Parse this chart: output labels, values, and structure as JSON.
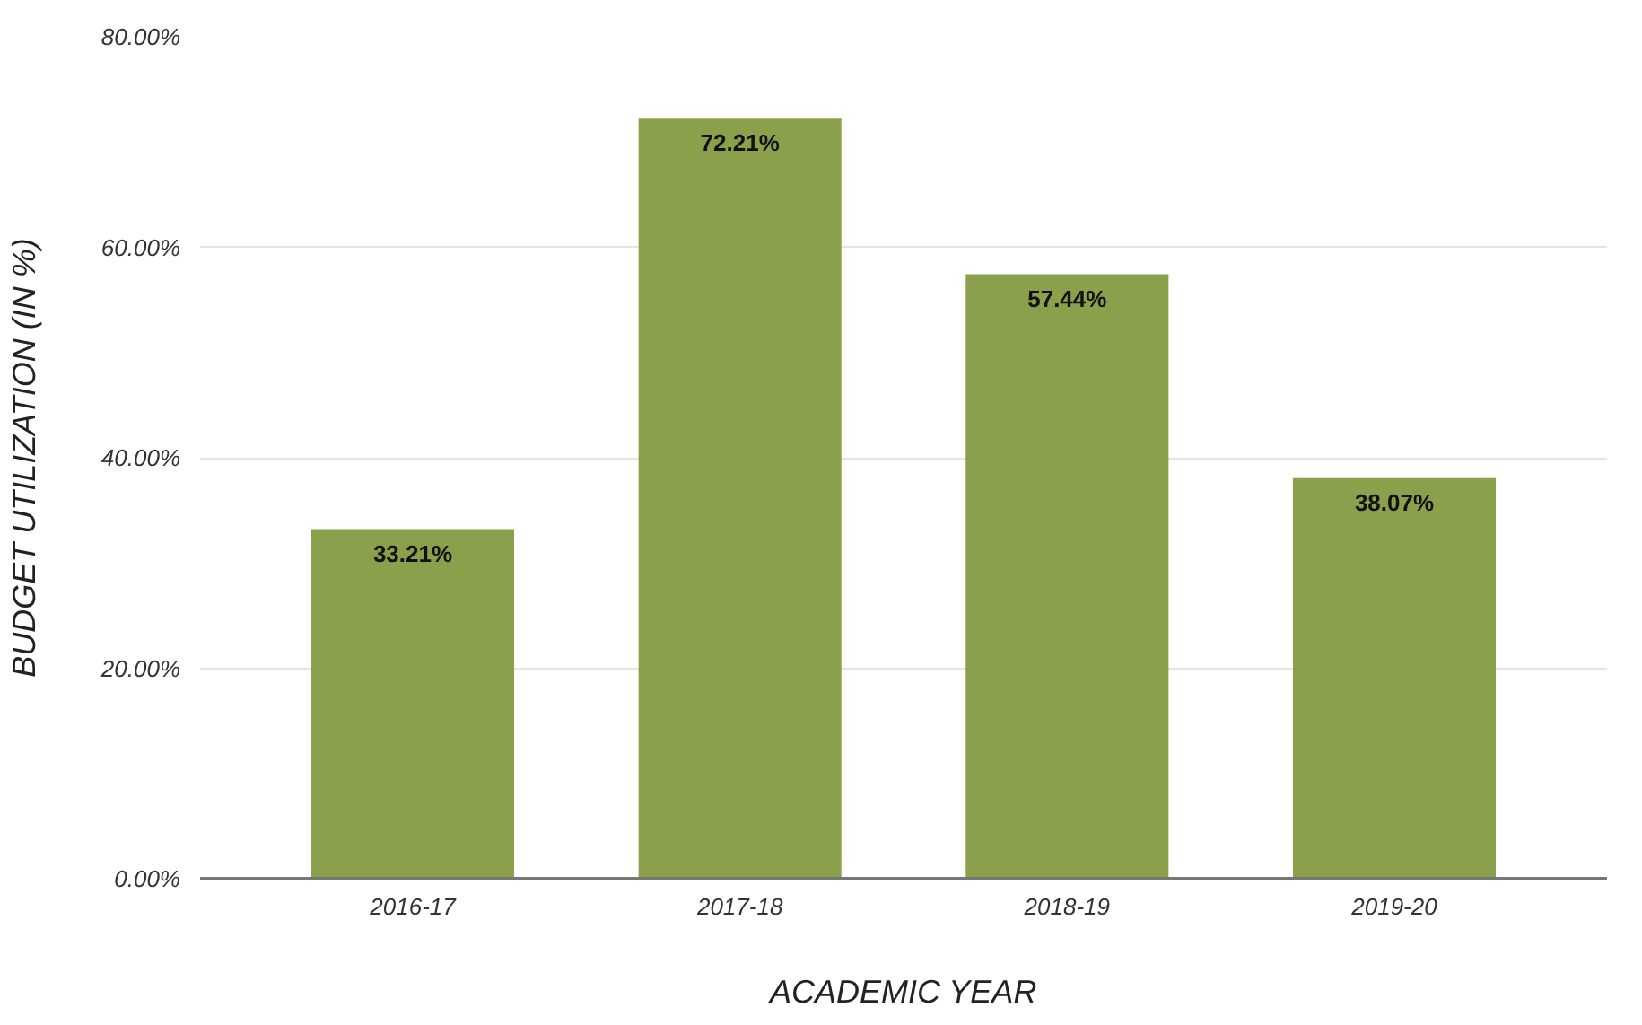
{
  "chart_data": {
    "type": "bar",
    "xlabel": "ACADEMIC YEAR",
    "ylabel": "BUDGET UTILIZATION (IN %)",
    "categories": [
      "2016-17",
      "2017-18",
      "2018-19",
      "2019-20"
    ],
    "values": [
      33.21,
      72.21,
      57.44,
      38.07
    ],
    "value_labels": [
      "33.21%",
      "72.21%",
      "57.44%",
      "38.07%"
    ],
    "color": "#8aa04a",
    "ylim": [
      0,
      80
    ],
    "yticks": [
      {
        "value": 0,
        "label": "0.00%"
      },
      {
        "value": 20,
        "label": "20.00%"
      },
      {
        "value": 40,
        "label": "40.00%"
      },
      {
        "value": 60,
        "label": "60.00%"
      },
      {
        "value": 80,
        "label": "80.00%"
      }
    ],
    "grid": "y"
  }
}
